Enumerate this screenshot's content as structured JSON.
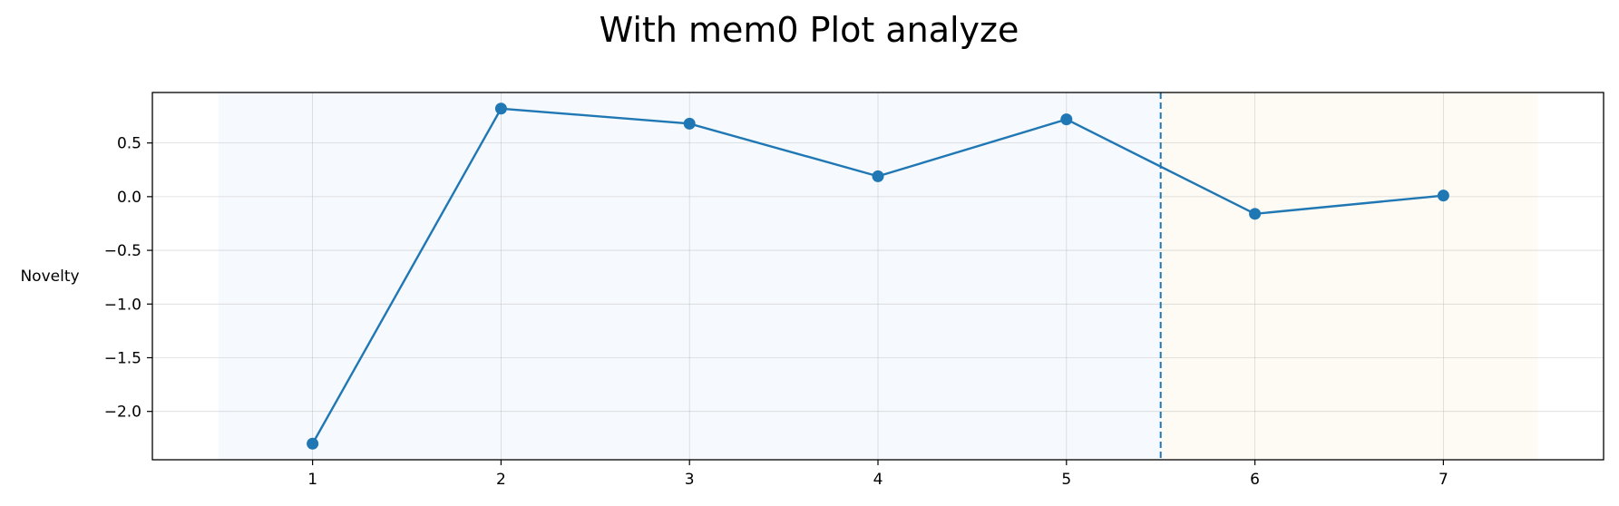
{
  "chart_data": {
    "type": "line",
    "title": "With mem0 Plot analyze",
    "xlabel": "",
    "ylabel": "Novelty",
    "xlim": [
      0.15,
      7.85
    ],
    "ylim": [
      -2.45,
      0.97
    ],
    "xticks": [
      1,
      2,
      3,
      4,
      5,
      6,
      7
    ],
    "xtick_labels": [
      "1",
      "2",
      "3",
      "4",
      "5",
      "6",
      "7"
    ],
    "yticks": [
      -2.0,
      -1.5,
      -1.0,
      -0.5,
      0.0,
      0.5
    ],
    "ytick_labels": [
      "−2.0",
      "−1.5",
      "−1.0",
      "−0.5",
      "0.0",
      "0.5"
    ],
    "grid": true,
    "series": [
      {
        "x": [
          1,
          2,
          3,
          4,
          5,
          6,
          7
        ],
        "values": [
          -2.3,
          0.82,
          0.68,
          0.19,
          0.72,
          -0.16,
          0.01
        ],
        "color": "#1f77b4",
        "marker": "circle"
      }
    ],
    "shaded_regions": [
      {
        "x_start": 0.5,
        "x_end": 5.5,
        "color": "#eaf1fb"
      },
      {
        "x_start": 5.5,
        "x_end": 7.5,
        "color": "#fdf3e6"
      }
    ],
    "vertical_lines": [
      {
        "x": 5.5,
        "style": "dashed",
        "color": "#1f77b4"
      }
    ]
  }
}
